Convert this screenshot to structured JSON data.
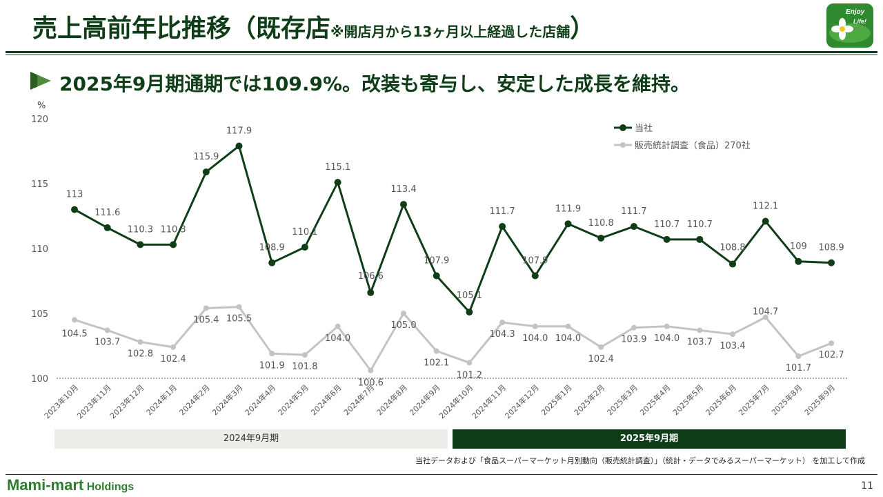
{
  "header": {
    "title_main": "売上高前年比推移（既存店",
    "title_note": "※開店月から13ヶ月以上経過した店舗",
    "title_close": "）",
    "logo_text_1": "Enjoy",
    "logo_text_2": "Life!"
  },
  "headline": "2025年9月期通期では109.9%。改装も寄与し、安定した成長を維持。",
  "colors": {
    "primary": "#0f3d18",
    "secondary": "#c3c3c3",
    "brand": "#2e7d2e"
  },
  "chart_data": {
    "type": "line",
    "y_unit": "%",
    "ylim": [
      100,
      120
    ],
    "yticks": [
      100,
      105,
      110,
      115,
      120
    ],
    "categories": [
      "2023年10月",
      "2023年11月",
      "2023年12月",
      "2024年1月",
      "2024年2月",
      "2024年3月",
      "2024年4月",
      "2024年5月",
      "2024年6月",
      "2024年7月",
      "2024年8月",
      "2024年9月",
      "2024年10月",
      "2024年11月",
      "2024年12月",
      "2025年1月",
      "2025年2月",
      "2025年3月",
      "2025年4月",
      "2025年5月",
      "2025年6月",
      "2025年7月",
      "2025年8月",
      "2025年9月"
    ],
    "series": [
      {
        "name": "当社",
        "values": [
          113,
          111.6,
          110.3,
          110.3,
          115.9,
          117.9,
          108.9,
          110.1,
          115.1,
          106.6,
          113.4,
          107.9,
          105.1,
          111.7,
          107.9,
          111.9,
          110.8,
          111.7,
          110.7,
          110.7,
          108.8,
          112.1,
          109,
          108.9
        ],
        "labels": [
          "113",
          "111.6",
          "110.3",
          "110.3",
          "115.9",
          "117.9",
          "108.9",
          "110.1",
          "115.1",
          "106.6",
          "113.4",
          "107.9",
          "105.1",
          "111.7",
          "107.9",
          "111.9",
          "110.8",
          "111.7",
          "110.7",
          "110.7",
          "108.8",
          "112.1",
          "109",
          "108.9"
        ]
      },
      {
        "name": "販売統計調査（食品）270社",
        "values": [
          104.5,
          103.7,
          102.8,
          102.4,
          105.4,
          105.5,
          101.9,
          101.8,
          104.0,
          100.6,
          105.0,
          102.1,
          101.2,
          104.3,
          104.0,
          104.0,
          102.4,
          103.9,
          104.0,
          103.7,
          103.4,
          104.7,
          101.7,
          102.7
        ],
        "labels": [
          "104.5",
          "103.7",
          "102.8",
          "102.4",
          "105.4",
          "105.5",
          "101.9",
          "101.8",
          "104.0",
          "100.6",
          "105.0",
          "102.1",
          "101.2",
          "104.3",
          "104.0",
          "104.0",
          "102.4",
          "103.9",
          "104.0",
          "103.7",
          "103.4",
          "104.7",
          "101.7",
          "102.7"
        ]
      }
    ],
    "legend_position": "top-right",
    "baseline": 100
  },
  "periods": {
    "prev_label": "2024年9月期",
    "curr_label": "2025年9月期"
  },
  "source": "当社データおよび「食品スーパーマーケット月別動向（販売統計調査）」（統計・データでみるスーパーマーケット） を加工して作成",
  "footer": {
    "brand_main": "Mami-mart",
    "brand_sub": "Holdings",
    "page_number": "11"
  }
}
